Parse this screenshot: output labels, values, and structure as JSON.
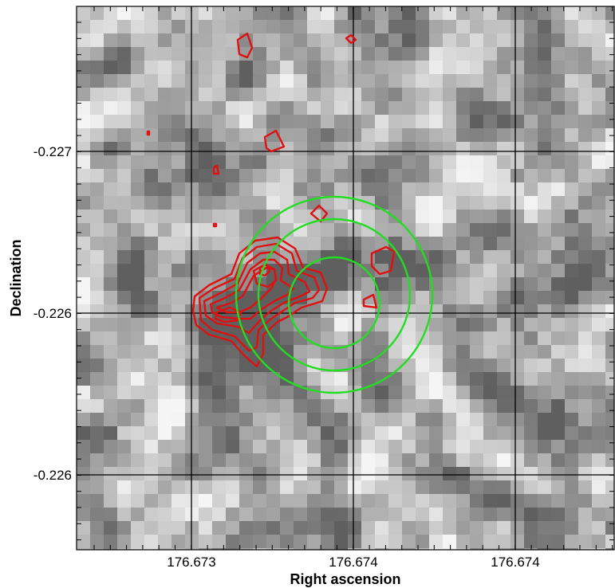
{
  "figure": {
    "xlabel": "Right ascension",
    "ylabel": "Declination",
    "x_tick_labels": [
      "176.673",
      "176.674",
      "176.674"
    ],
    "y_tick_labels": [
      "-0.227",
      "-0.226",
      "-0.226"
    ],
    "colors": {
      "contour": "#e01010",
      "circle": "#22dd22",
      "grid": "#000000",
      "frame": "#000000"
    },
    "image": "grayscale pixelated sky image",
    "overlays": [
      "red flux contours",
      "three concentric green circles",
      "black coordinate grid"
    ]
  }
}
